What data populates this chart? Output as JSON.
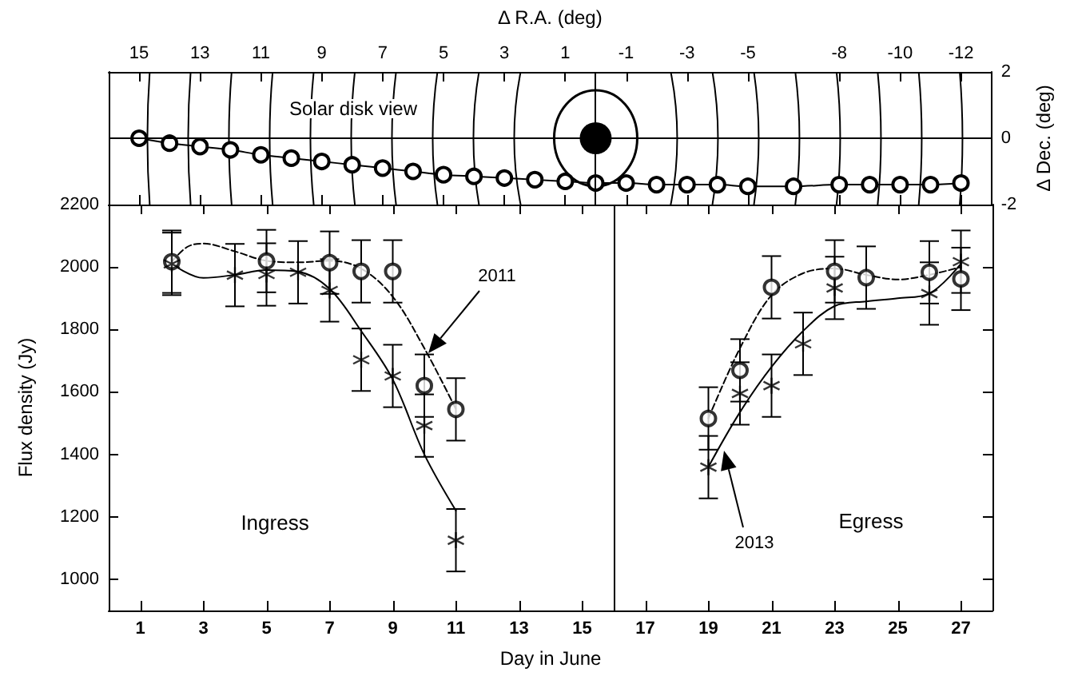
{
  "chart_data": [
    {
      "type": "line",
      "xlabel": "Δ R.A. (deg)",
      "ylabel": "Δ Dec. (deg)",
      "color": "#000000",
      "marker": "circle",
      "x": [
        15,
        14,
        13,
        12,
        11,
        10,
        9,
        8,
        7,
        6,
        5,
        4,
        3,
        2,
        1,
        0,
        -1,
        -2,
        -3,
        -4,
        -5,
        -6.5,
        -8,
        -9,
        -10,
        -11,
        -12
      ],
      "values": [
        0,
        -0.15,
        -0.25,
        -0.35,
        -0.5,
        -0.6,
        -0.7,
        -0.8,
        -0.9,
        -1.0,
        -1.1,
        -1.15,
        -1.2,
        -1.25,
        -1.3,
        -1.35,
        -1.35,
        -1.4,
        -1.4,
        -1.4,
        -1.45,
        -1.45,
        -1.4,
        -1.4,
        -1.4,
        -1.4,
        -1.35
      ],
      "xlim": [
        16,
        -13
      ],
      "xticks": [
        15,
        13,
        11,
        9,
        7,
        5,
        3,
        1,
        -1,
        -3,
        -5,
        -8,
        -10,
        -12
      ],
      "ylim": [
        -2,
        2
      ],
      "yticks": [
        -2,
        0,
        2
      ],
      "ref_lines": [
        {
          "axis": "y",
          "value": 0
        },
        {
          "axis": "x",
          "value": 0
        }
      ],
      "annotations": [
        "Solar disk view"
      ]
    },
    {
      "type": "scatter",
      "xlabel": "Day in June",
      "ylabel": "Flux density (Jy)",
      "xlim": [
        0,
        28
      ],
      "xticks": [
        1,
        3,
        5,
        7,
        9,
        11,
        13,
        15,
        17,
        19,
        21,
        23,
        25,
        27
      ],
      "ylim": [
        900,
        2200
      ],
      "yticks": [
        1000,
        1200,
        1400,
        1600,
        1800,
        2000,
        2200
      ],
      "ref_lines": [
        {
          "axis": "x",
          "value": 16
        }
      ],
      "annotations": [
        "Ingress",
        "Egress",
        "2011",
        "2013"
      ],
      "series": [
        {
          "type": "scatter",
          "marker": "circle",
          "color": "#000000",
          "x": [
            2,
            5,
            7,
            8,
            9,
            10,
            11,
            19,
            20,
            21,
            23,
            24,
            26,
            27
          ],
          "values": [
            2017,
            2019,
            2014,
            1986,
            1986,
            1620,
            1544,
            1515,
            1669,
            1935,
            1986,
            1966,
            1983,
            1962
          ],
          "errors": [
            100,
            100,
            100,
            100,
            100,
            100,
            100,
            100,
            100,
            100,
            100,
            100,
            100,
            100
          ]
        },
        {
          "type": "scatter",
          "marker": "cross",
          "color": "#000000",
          "x": [
            2,
            4,
            5,
            6,
            7,
            8,
            9,
            10,
            11,
            19,
            20,
            21,
            22,
            23,
            26,
            27
          ],
          "values": [
            2010,
            1974,
            1976,
            1983,
            1925,
            1703,
            1651,
            1492,
            1125,
            1359,
            1595,
            1620,
            1754,
            1933,
            1915,
            2017
          ],
          "errors": [
            100,
            100,
            100,
            100,
            100,
            100,
            100,
            100,
            100,
            100,
            100,
            100,
            100,
            100,
            100,
            100
          ]
        },
        {
          "type": "line",
          "line_style": "dashed",
          "marker": "none",
          "color": "#000000",
          "x": [
            2,
            2.5,
            3,
            4,
            5,
            6,
            7,
            8,
            9,
            10,
            11,
            15,
            19,
            20,
            21,
            22,
            23,
            24,
            25,
            26,
            27
          ],
          "values": [
            2017,
            2065,
            2075,
            2050,
            2020,
            2015,
            2020,
            1995,
            1905,
            1740,
            1545,
            null,
            1515,
            1740,
            1910,
            1980,
            1995,
            1975,
            1960,
            1975,
            2000
          ]
        },
        {
          "type": "line",
          "line_style": "solid",
          "marker": "none",
          "color": "#000000",
          "x": [
            2,
            3,
            4,
            5,
            6,
            7,
            8,
            9,
            10,
            11,
            15,
            19,
            20,
            21,
            22,
            23,
            24,
            25,
            26,
            27
          ],
          "values": [
            2010,
            1965,
            1975,
            1990,
            1985,
            1930,
            1795,
            1640,
            1400,
            1220,
            null,
            1360,
            1535,
            1680,
            1795,
            1875,
            1890,
            1900,
            1915,
            2010
          ]
        }
      ]
    }
  ]
}
